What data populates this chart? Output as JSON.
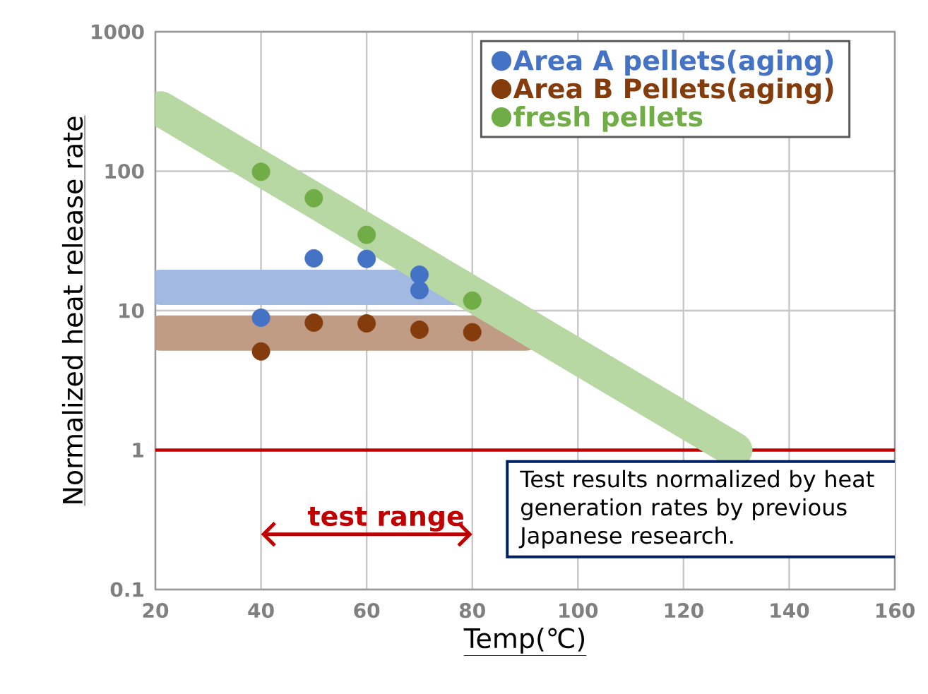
{
  "chart_data": {
    "type": "scatter",
    "xlabel": "Temp(℃)",
    "ylabel": "Normalized heat release rate",
    "xlim": [
      20,
      160
    ],
    "xticks": [
      20,
      40,
      60,
      80,
      100,
      120,
      140,
      160
    ],
    "ylim": [
      0.1,
      1000
    ],
    "yticks": [
      0.1,
      1,
      10,
      100,
      1000
    ],
    "log": "y",
    "grid": true,
    "legend": "top right",
    "marker": "circle",
    "series": [
      {
        "type": "line",
        "marker": "none",
        "color": "#a2b9e2",
        "x": [
          21,
          77
        ],
        "values": [
          14.7,
          14.7
        ]
      },
      {
        "type": "line",
        "marker": "none",
        "color": "#c19c84",
        "x": [
          21,
          90
        ],
        "values": [
          6.9,
          6.9
        ]
      },
      {
        "type": "line",
        "marker": "none",
        "color": "#b7d7a3",
        "x": [
          21,
          129.7
        ],
        "values": [
          280,
          1
        ]
      },
      {
        "name": "Area A pellets(aging)",
        "color": "#4472c4",
        "x": [
          40,
          50,
          60,
          70,
          70
        ],
        "values": [
          8.9,
          23.7,
          23.5,
          18.1,
          14.0
        ]
      },
      {
        "name": "Area B Pellets(aging)",
        "color": "#843c0c",
        "x": [
          40,
          50,
          60,
          70,
          80
        ],
        "values": [
          5.1,
          8.2,
          8.1,
          7.3,
          7.0
        ]
      },
      {
        "name": "fresh pellets",
        "color": "#70ad47",
        "x": [
          40,
          50,
          60,
          80
        ],
        "values": [
          99,
          64,
          35,
          11.8
        ]
      }
    ],
    "ref_lines": [
      {
        "axis": "y",
        "value": 1,
        "color": "#c00000"
      }
    ],
    "annotations": [
      "test range",
      "Test results normalized by heat generation rates by previous Japanese research."
    ]
  }
}
